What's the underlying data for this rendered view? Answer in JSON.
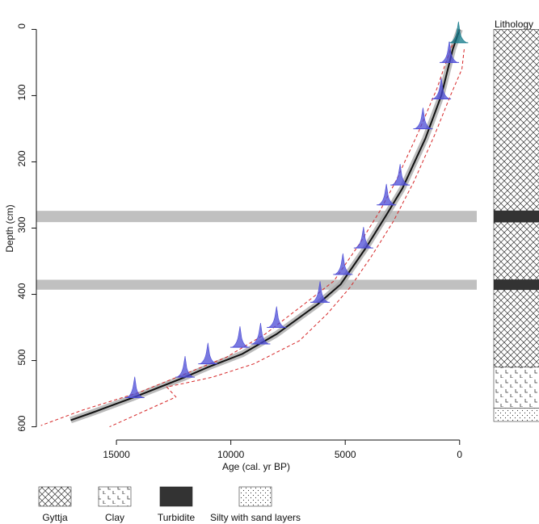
{
  "chart_data": {
    "type": "age-depth",
    "xlabel": "Age (cal. yr BP)",
    "ylabel": "Depth (cm)",
    "xlim": [
      18500,
      -750
    ],
    "ylim": [
      -20,
      620
    ],
    "xticks": [
      15000,
      10000,
      5000,
      0
    ],
    "yticks": [
      0,
      100,
      200,
      300,
      400,
      500,
      600
    ],
    "series": [
      {
        "color": "#111111",
        "style": "solid",
        "x": [
          0,
          300,
          800,
          1500,
          2500,
          3200,
          4100,
          5200,
          6200,
          8000,
          9500,
          11000,
          12000,
          14200,
          16000,
          17000
        ],
        "values": [
          0,
          30,
          100,
          165,
          240,
          280,
          330,
          385,
          415,
          460,
          490,
          510,
          525,
          555,
          578,
          590
        ]
      },
      {
        "color": "#d62728",
        "style": "dashed",
        "x": [
          0,
          400,
          1000,
          1800,
          2800,
          3500,
          4400,
          5500,
          6800,
          8500,
          10200,
          12000,
          14000,
          16500,
          18300
        ],
        "values": [
          0,
          30,
          90,
          155,
          230,
          275,
          325,
          380,
          415,
          460,
          495,
          520,
          548,
          575,
          598
        ]
      },
      {
        "color": "#d62728",
        "style": "dashed",
        "x": [
          -200,
          -100,
          400,
          1100,
          2000,
          2900,
          3900,
          4800,
          5800,
          7000,
          9000,
          10800,
          12800,
          12400,
          15300
        ],
        "values": [
          30,
          60,
          100,
          160,
          230,
          290,
          345,
          390,
          430,
          470,
          505,
          525,
          540,
          555,
          600
        ]
      }
    ],
    "band_color": "#aaaaaa",
    "dates": [
      {
        "age": 50,
        "depth": 20,
        "color": "#127a8a"
      },
      {
        "age": 450,
        "depth": 50,
        "color": "#4b4bd6"
      },
      {
        "age": 800,
        "depth": 105,
        "color": "#4b4bd6"
      },
      {
        "age": 1600,
        "depth": 150,
        "color": "#4b4bd6"
      },
      {
        "age": 2600,
        "depth": 235,
        "color": "#4b4bd6"
      },
      {
        "age": 3200,
        "depth": 265,
        "color": "#4b4bd6"
      },
      {
        "age": 4200,
        "depth": 330,
        "color": "#4b4bd6"
      },
      {
        "age": 5100,
        "depth": 370,
        "color": "#4b4bd6"
      },
      {
        "age": 6100,
        "depth": 412,
        "color": "#4b4bd6"
      },
      {
        "age": 8000,
        "depth": 450,
        "color": "#4b4bd6"
      },
      {
        "age": 8700,
        "depth": 475,
        "color": "#4b4bd6"
      },
      {
        "age": 9600,
        "depth": 480,
        "color": "#4b4bd6"
      },
      {
        "age": 11000,
        "depth": 505,
        "color": "#4b4bd6"
      },
      {
        "age": 12000,
        "depth": 525,
        "color": "#4b4bd6"
      },
      {
        "age": 14200,
        "depth": 556,
        "color": "#4b4bd6"
      }
    ],
    "event_layers": [
      [
        274,
        291
      ],
      [
        378,
        393
      ]
    ],
    "event_color": "#c0c0c0",
    "lithology_title": "Lithology",
    "facies": [
      "Gyttja",
      "Clay",
      "Turbidite",
      "Silty with sand layers"
    ],
    "lithology": [
      {
        "top": 0,
        "bottom": 274,
        "facies": 0
      },
      {
        "top": 274,
        "bottom": 291,
        "facies": 2
      },
      {
        "top": 291,
        "bottom": 378,
        "facies": 0
      },
      {
        "top": 378,
        "bottom": 393,
        "facies": 2
      },
      {
        "top": 393,
        "bottom": 510,
        "facies": 0
      },
      {
        "top": 510,
        "bottom": 572,
        "facies": 1
      },
      {
        "top": 572,
        "bottom": 592,
        "facies": 3
      }
    ]
  }
}
